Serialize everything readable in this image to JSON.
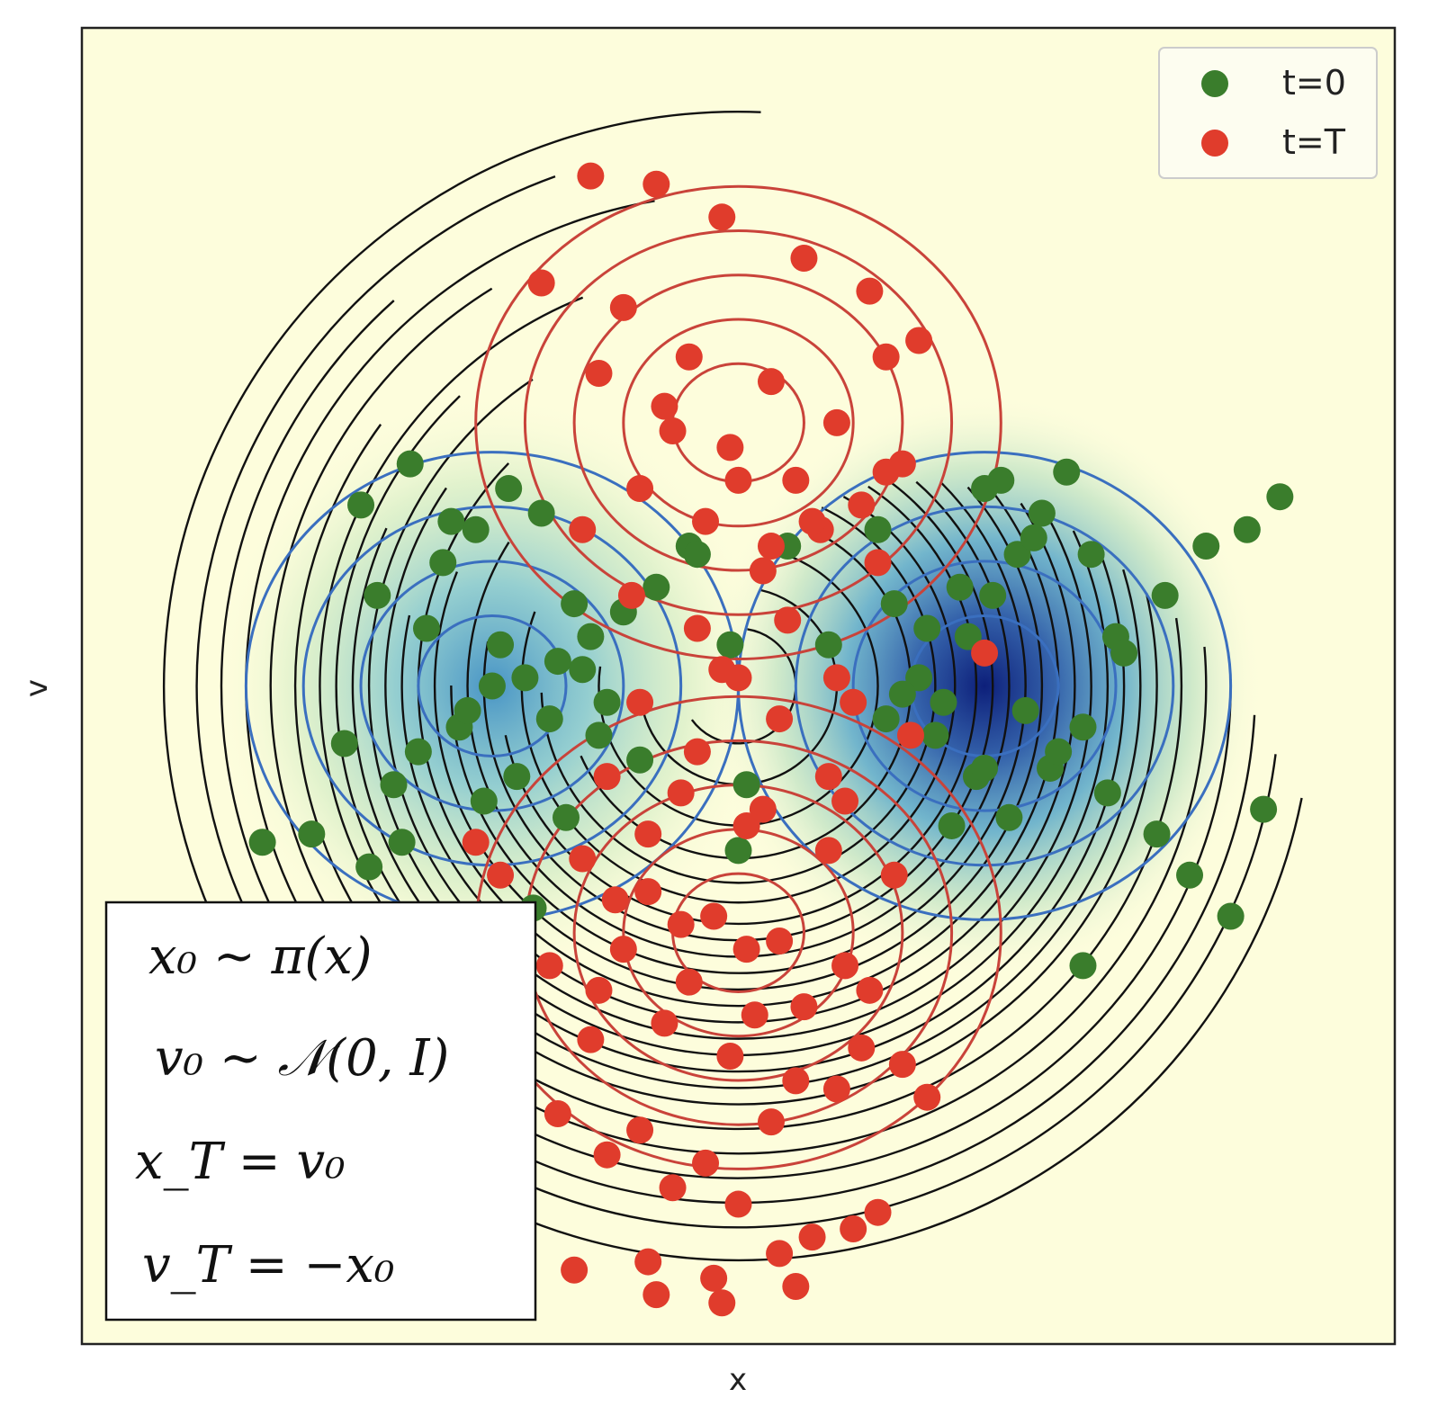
{
  "chart_data": {
    "type": "scatter",
    "title": "",
    "xlabel": "x",
    "ylabel": "v",
    "xlim": [
      -4,
      4
    ],
    "ylim": [
      -4,
      4
    ],
    "grid": false,
    "legend_position": "top-right",
    "background_map": "YlGnBu density of pi(x)",
    "colors": {
      "start": "#3a7d2c",
      "end": "#e03c2c",
      "trajectory": "#111111",
      "pi_contour": "#3a6fbf",
      "final_contour": "#c9433a",
      "background": "#fdfddc"
    },
    "legend": [
      {
        "label": "t=0",
        "color": "#3a7d2c"
      },
      {
        "label": "t=T",
        "color": "#e03c2c"
      }
    ],
    "annotation_lines": [
      "x₀ ~ π(x)",
      "v₀ ~ 𝒩(0, I)",
      "x_T = v₀",
      "v_T = −x₀"
    ],
    "density_modes": [
      {
        "x": -1.5,
        "v": 0.0,
        "weight": 0.55
      },
      {
        "x": 1.5,
        "v": 0.0,
        "weight": 1.0
      }
    ],
    "series": [
      {
        "name": "t=0",
        "x": [
          -1.5,
          -1.3,
          -1.1,
          -0.9,
          -1.7,
          -1.95,
          -2.1,
          -2.4,
          -2.6,
          -2.2,
          -1.8,
          -1.6,
          -1.4,
          -1.2,
          -1.0,
          -0.8,
          -1.9,
          -1.65,
          -1.35,
          -1.05,
          -0.85,
          -0.6,
          -2.3,
          -2.0,
          -1.75,
          -1.45,
          -1.15,
          -0.95,
          -1.55,
          -2.05,
          -2.25,
          -1.25,
          -0.7,
          -0.5,
          -0.3,
          -0.05,
          0.3,
          0.55,
          0.85,
          0.95,
          1.1,
          1.25,
          1.4,
          1.55,
          1.7,
          1.85,
          2.0,
          2.15,
          2.3,
          1.0,
          1.2,
          1.45,
          1.65,
          1.9,
          2.1,
          2.35,
          2.6,
          2.85,
          3.1,
          3.3,
          1.6,
          1.8,
          1.35,
          1.15,
          0.9,
          1.75,
          1.95,
          2.25,
          2.55,
          2.75,
          3.0,
          3.2,
          1.5,
          1.3,
          0.05,
          0.0,
          -0.25,
          1.5,
          2.1,
          -2.9
        ],
        "v": [
          0.0,
          0.05,
          0.15,
          0.3,
          -0.25,
          -0.4,
          -0.6,
          -0.35,
          -0.9,
          0.55,
          0.75,
          0.95,
          1.2,
          1.05,
          0.5,
          -0.1,
          0.35,
          -0.15,
          -0.55,
          -0.8,
          -0.3,
          -0.45,
          1.1,
          1.35,
          1.0,
          0.25,
          -0.2,
          0.1,
          -0.7,
          -0.95,
          -1.1,
          -1.35,
          0.45,
          0.6,
          0.85,
          0.25,
          0.85,
          0.25,
          0.95,
          0.5,
          0.05,
          -0.1,
          0.3,
          0.55,
          0.8,
          1.05,
          1.3,
          0.8,
          0.3,
          -0.05,
          -0.3,
          -0.55,
          -0.8,
          -0.5,
          -0.25,
          0.2,
          0.55,
          0.85,
          0.95,
          1.15,
          1.25,
          0.9,
          0.6,
          0.35,
          -0.2,
          -0.15,
          -0.4,
          -0.65,
          -0.9,
          -1.15,
          -1.4,
          -0.75,
          -0.5,
          -0.85,
          -0.6,
          -1.0,
          0.8,
          1.2,
          -1.7,
          -0.95
        ]
      },
      {
        "name": "t=T",
        "x": [
          -0.9,
          -0.5,
          -0.1,
          0.4,
          0.8,
          1.1,
          -1.2,
          -0.7,
          -0.3,
          0.2,
          0.6,
          1.0,
          -0.85,
          -0.45,
          -0.05,
          0.35,
          0.75,
          -0.6,
          -0.2,
          0.2,
          0.5,
          0.9,
          -0.95,
          -0.4,
          0.0,
          0.45,
          0.85,
          -0.65,
          -0.25,
          0.15,
          0.6,
          -0.1,
          0.3,
          0.7,
          1.05,
          -0.8,
          -0.35,
          0.05,
          0.55,
          0.95,
          -0.55,
          -0.15,
          0.25,
          0.65,
          -0.7,
          -0.3,
          0.1,
          0.4,
          0.8,
          -0.9,
          -0.45,
          -0.05,
          0.35,
          0.75,
          1.15,
          -1.1,
          -0.6,
          -0.2,
          0.2,
          0.6,
          1.0,
          -0.8,
          -0.4,
          0.0,
          0.45,
          0.85,
          -0.55,
          -0.15,
          0.25,
          0.7,
          -1.0,
          -0.5,
          -0.1,
          0.35,
          -0.75,
          -0.35,
          0.05,
          -0.95,
          -0.55,
          0.55,
          0.15,
          -0.25,
          0.25,
          0.65,
          -1.6,
          -1.45,
          -1.15,
          -0.85,
          0.0,
          1.5,
          -0.6,
          0.9
        ],
        "v": [
          3.1,
          3.05,
          2.85,
          2.6,
          2.4,
          2.1,
          2.45,
          2.3,
          2.0,
          1.85,
          1.6,
          1.35,
          1.9,
          1.7,
          1.45,
          1.25,
          1.1,
          1.2,
          1.0,
          0.85,
          0.95,
          1.3,
          0.95,
          1.55,
          1.25,
          1.0,
          0.75,
          0.55,
          0.35,
          0.7,
          0.05,
          0.1,
          0.4,
          -0.1,
          -0.3,
          -0.55,
          -0.65,
          -0.85,
          -1.0,
          -1.15,
          -1.25,
          -1.4,
          -1.55,
          -1.7,
          -1.6,
          -1.8,
          -2.0,
          -1.95,
          -1.85,
          -2.15,
          -2.05,
          -2.25,
          -2.4,
          -2.2,
          -2.5,
          -2.6,
          -2.7,
          -2.9,
          -2.65,
          -2.45,
          -2.3,
          -2.85,
          -3.05,
          -3.15,
          -3.35,
          -3.2,
          -3.5,
          -3.6,
          -3.45,
          -3.3,
          -3.55,
          -3.7,
          -3.75,
          -3.65,
          -1.3,
          -1.45,
          -1.6,
          -1.05,
          -0.9,
          -0.55,
          -0.75,
          -0.4,
          -0.2,
          -0.7,
          -0.95,
          -1.15,
          -1.7,
          -1.85,
          0.05,
          0.2,
          -0.1,
          2.0
        ]
      }
    ]
  }
}
